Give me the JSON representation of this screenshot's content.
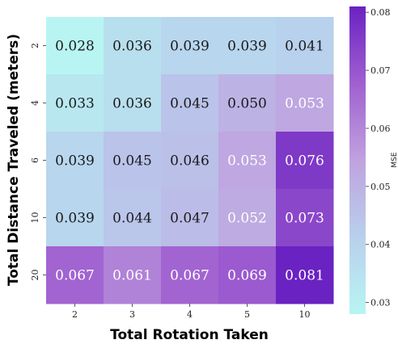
{
  "chart_data": {
    "type": "heatmap",
    "xlabel": "Total Rotation Taken",
    "ylabel": "Total Distance Traveled (meters)",
    "x_categories": [
      "2",
      "3",
      "4",
      "5",
      "10"
    ],
    "y_categories": [
      "2",
      "4",
      "6",
      "10",
      "20"
    ],
    "values": [
      [
        0.028,
        0.036,
        0.039,
        0.039,
        0.041
      ],
      [
        0.033,
        0.036,
        0.045,
        0.05,
        0.053
      ],
      [
        0.039,
        0.045,
        0.046,
        0.053,
        0.076
      ],
      [
        0.039,
        0.044,
        0.047,
        0.052,
        0.073
      ],
      [
        0.067,
        0.061,
        0.067,
        0.069,
        0.081
      ]
    ],
    "value_labels": [
      [
        "0.028",
        "0.036",
        "0.039",
        "0.039",
        "0.041"
      ],
      [
        "0.033",
        "0.036",
        "0.045",
        "0.050",
        "0.053"
      ],
      [
        "0.039",
        "0.045",
        "0.046",
        "0.053",
        "0.076"
      ],
      [
        "0.039",
        "0.044",
        "0.047",
        "0.052",
        "0.073"
      ],
      [
        "0.067",
        "0.061",
        "0.067",
        "0.069",
        "0.081"
      ]
    ],
    "colorbar": {
      "label": "MSE",
      "range": [
        0.028,
        0.081
      ],
      "ticks": [
        0.03,
        0.04,
        0.05,
        0.06,
        0.07,
        0.08
      ],
      "tick_labels": [
        "0.03",
        "0.04",
        "0.05",
        "0.06",
        "0.07",
        "0.08"
      ],
      "colors": [
        "#b8f5f2",
        "#b8d0ec",
        "#c0a2e0",
        "#a060d0",
        "#6a22c2"
      ]
    }
  }
}
